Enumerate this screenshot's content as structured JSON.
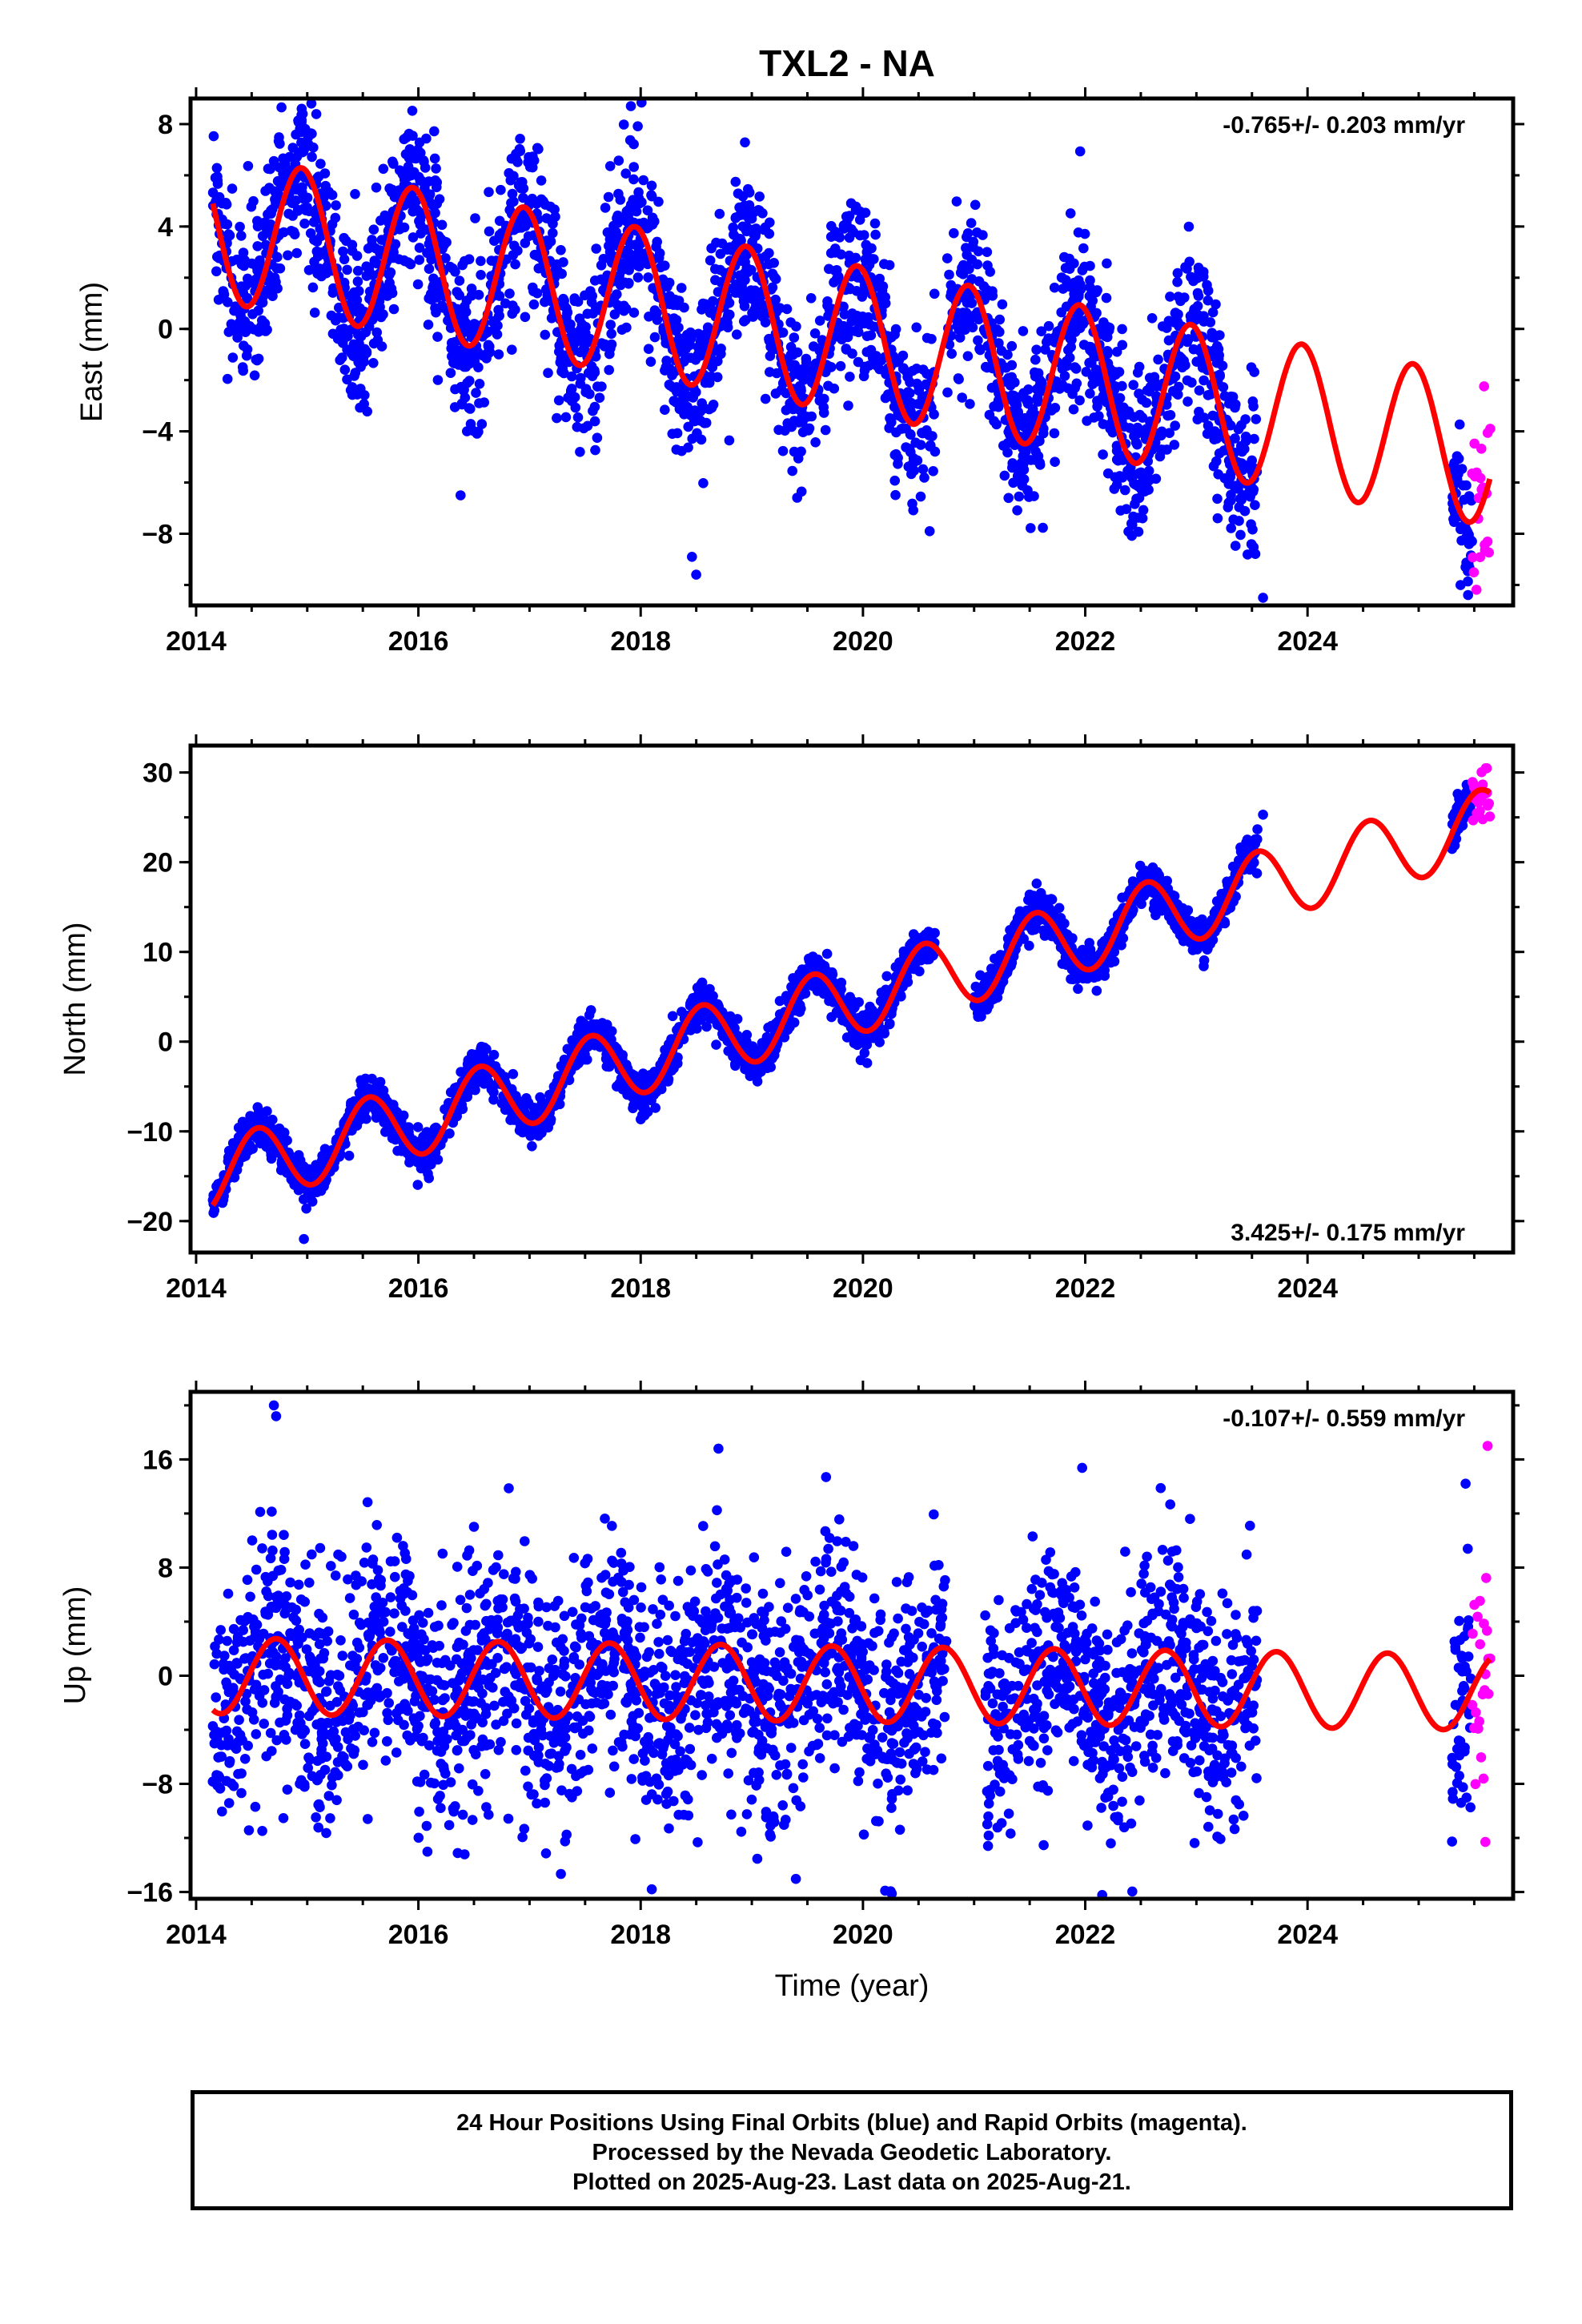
{
  "title": "TXL2 - NA",
  "colors": {
    "final": "#0000ff",
    "rapid": "#ff00ff",
    "model": "#ff0000",
    "axis": "#000000"
  },
  "chart_data": [
    {
      "type": "scatter",
      "component": "East",
      "ylabel": "East (mm)",
      "xlabel": "",
      "rate_text": "-0.765+/- 0.203 mm/yr",
      "rate_position": "top-right",
      "xlim": [
        2013.95,
        2025.85
      ],
      "ylim": [
        -10.8,
        9.0
      ],
      "xticks": [
        2014,
        2016,
        2018,
        2020,
        2022,
        2024
      ],
      "xtick_labels": [
        "2014",
        "2016",
        "2018",
        "2020",
        "2022",
        "2024"
      ],
      "yticks": [
        8,
        4,
        0,
        -4,
        -8
      ],
      "ytick_labels": [
        "8",
        "4",
        "0",
        "−4",
        "−8"
      ],
      "grid": false,
      "data_spans": [
        [
          2014.15,
          2020.65
        ],
        [
          2020.75,
          2023.55
        ],
        [
          2025.3,
          2025.48
        ]
      ],
      "rapid_span": [
        2025.48,
        2025.64
      ],
      "model": {
        "offset": 4.0,
        "rate": -0.765,
        "annual_amp": 2.9,
        "annual_peak": 2014.95,
        "t0": 2014.15
      },
      "scatter_sd": 1.6,
      "n_points_per_year": 300,
      "outliers": [
        [
          2018.5,
          -9.6
        ],
        [
          2023.6,
          -10.5
        ],
        [
          2020.6,
          -7.9
        ],
        [
          2014.95,
          8.6
        ]
      ]
    },
    {
      "type": "scatter",
      "component": "North",
      "ylabel": "North (mm)",
      "xlabel": "",
      "rate_text": "3.425+/- 0.175 mm/yr",
      "rate_position": "bottom-right",
      "xlim": [
        2013.95,
        2025.85
      ],
      "ylim": [
        -23.5,
        33.0
      ],
      "xticks": [
        2014,
        2016,
        2018,
        2020,
        2022,
        2024
      ],
      "xtick_labels": [
        "2014",
        "2016",
        "2018",
        "2020",
        "2022",
        "2024"
      ],
      "yticks": [
        30,
        20,
        10,
        0,
        -10,
        -20
      ],
      "ytick_labels": [
        "30",
        "20",
        "10",
        "0",
        "−10",
        "−20"
      ],
      "grid": false,
      "data_spans": [
        [
          2014.15,
          2020.65
        ],
        [
          2021.0,
          2023.55
        ],
        [
          2025.3,
          2025.48
        ]
      ],
      "rapid_span": [
        2025.48,
        2025.64
      ],
      "model": {
        "offset": -15.0,
        "rate": 3.425,
        "annual_amp": 4.0,
        "annual_peak": 2014.55,
        "t0": 2014.15
      },
      "scatter_sd": 1.1,
      "n_points_per_year": 300,
      "outliers": [
        [
          2014.97,
          -22.0
        ],
        [
          2023.6,
          25.3
        ],
        [
          2021.5,
          16.4
        ]
      ]
    },
    {
      "type": "scatter",
      "component": "Up",
      "ylabel": "Up (mm)",
      "xlabel": "Time (year)",
      "rate_text": "-0.107+/- 0.559 mm/yr",
      "rate_position": "top-right",
      "xlim": [
        2013.95,
        2025.85
      ],
      "ylim": [
        -16.5,
        21.0
      ],
      "xticks": [
        2014,
        2016,
        2018,
        2020,
        2022,
        2024
      ],
      "xtick_labels": [
        "2014",
        "2016",
        "2018",
        "2020",
        "2022",
        "2024"
      ],
      "yticks": [
        16,
        8,
        0,
        -8,
        -16
      ],
      "ytick_labels": [
        "16",
        "8",
        "0",
        "−8",
        "−16"
      ],
      "grid": false,
      "data_spans": [
        [
          2014.15,
          2020.75
        ],
        [
          2021.1,
          2023.55
        ],
        [
          2025.3,
          2025.48
        ]
      ],
      "rapid_span": [
        2025.48,
        2025.64
      ],
      "model": {
        "offset": 0.0,
        "rate": -0.107,
        "annual_amp": 2.8,
        "annual_peak": 2014.72,
        "t0": 2014.15
      },
      "scatter_sd": 4.3,
      "n_points_per_year": 280,
      "outliers": [
        [
          2014.7,
          20.0
        ],
        [
          2014.72,
          19.2
        ],
        [
          2018.7,
          16.8
        ],
        [
          2025.62,
          17.0
        ],
        [
          2025.6,
          -12.3
        ],
        [
          2018.1,
          -15.8
        ],
        [
          2020.2,
          -15.9
        ]
      ]
    }
  ],
  "footer": {
    "line1": "24 Hour Positions Using Final Orbits (blue) and Rapid Orbits (magenta).",
    "line2": "Processed by the Nevada Geodetic Laboratory.",
    "line3": "Plotted on 2025-Aug-23. Last data on 2025-Aug-21."
  }
}
